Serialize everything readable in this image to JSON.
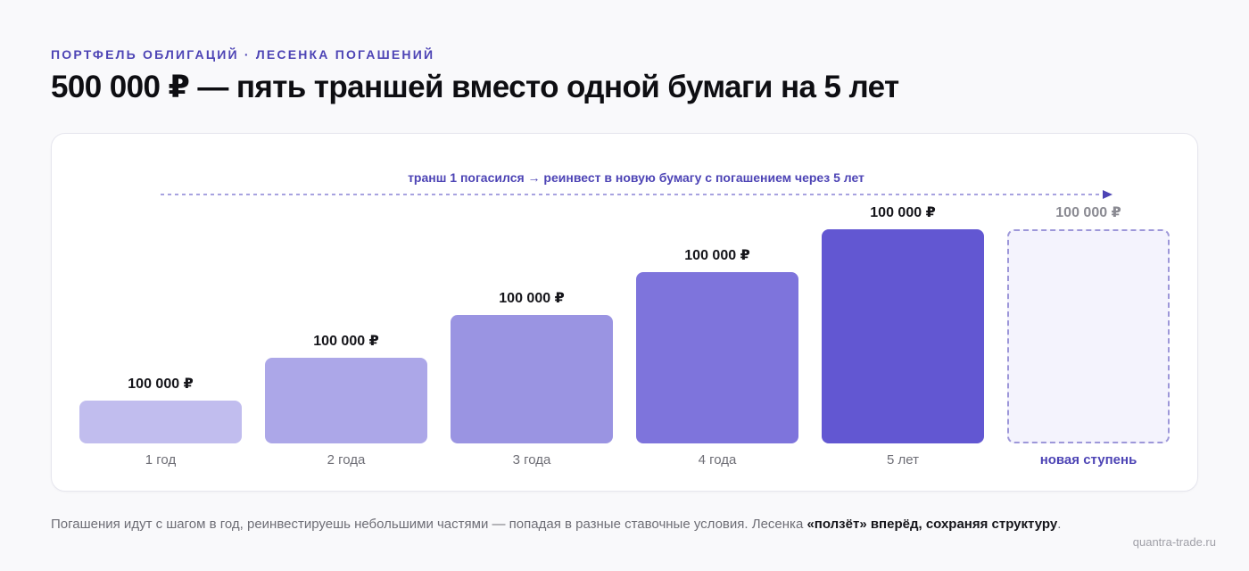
{
  "header": {
    "eyebrow": "ПОРТФЕЛЬ ОБЛИГАЦИЙ · ЛЕСЕНКА ПОГАШЕНИЙ",
    "title": "500 000 ₽ — пять траншей вместо одной бумаги на 5 лет"
  },
  "annotation": "транш 1 погасился → реинвест в новую бумагу с погашением через 5 лет",
  "chart_data": {
    "type": "bar",
    "categories": [
      "1 год",
      "2 года",
      "3 года",
      "4 года",
      "5 лет",
      "новая ступень"
    ],
    "values": [
      100000,
      100000,
      100000,
      100000,
      100000,
      100000
    ],
    "value_labels": [
      "100 000 ₽",
      "100 000 ₽",
      "100 000 ₽",
      "100 000 ₽",
      "100 000 ₽",
      "100 000 ₽"
    ],
    "bar_colors": [
      "#c1bdee",
      "#aca7e8",
      "#9a94e2",
      "#7e74dc",
      "#6257d2",
      "#f4f3fd"
    ],
    "grid": false
  },
  "footer": {
    "text_before": "Погашения идут с шагом в год, реинвестируешь небольшими частями — попадая в разные ставочные условия. Лесенка ",
    "text_bold": "«ползёт» вперёд, сохраняя структуру",
    "text_after": "."
  },
  "site": "quantra-trade.ru"
}
